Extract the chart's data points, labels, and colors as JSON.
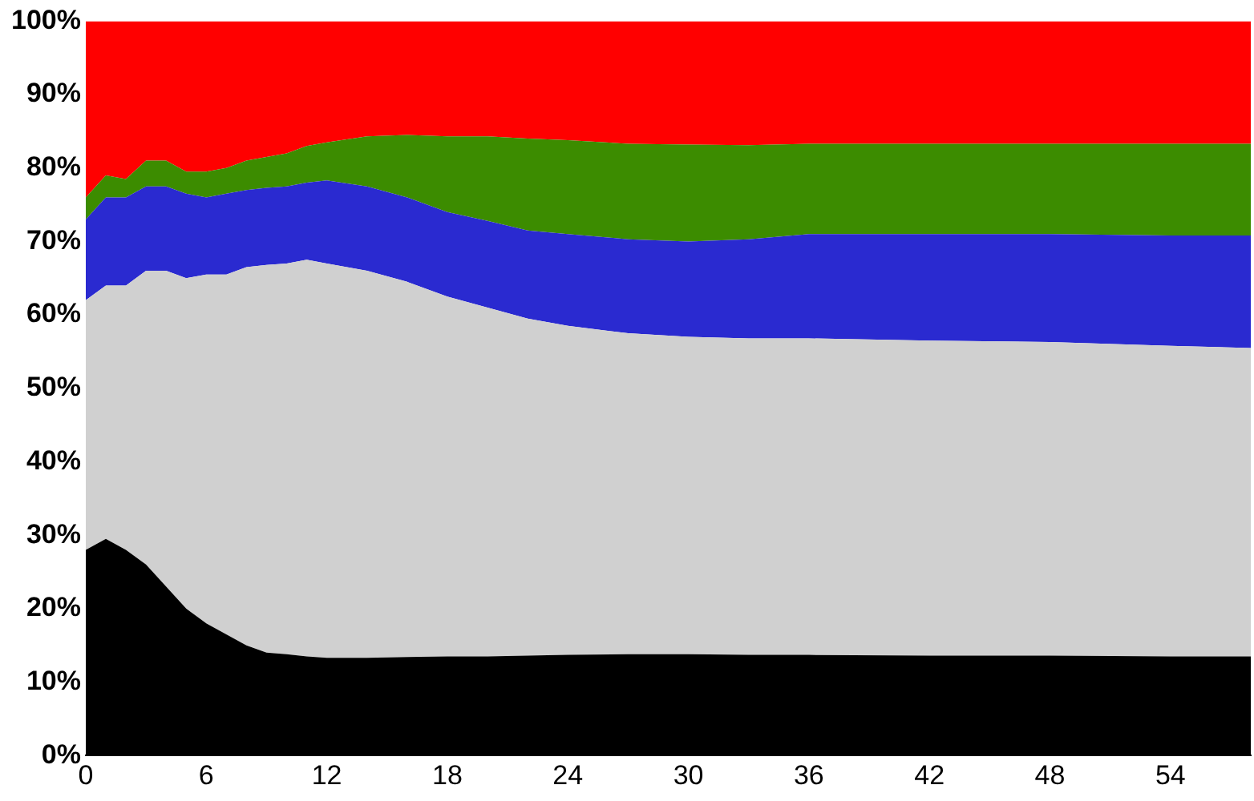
{
  "chart_data": {
    "type": "area",
    "stacked": true,
    "marker": "none",
    "legend": false,
    "grid": false,
    "x": [
      0,
      1,
      2,
      3,
      4,
      5,
      6,
      7,
      8,
      9,
      10,
      11,
      12,
      14,
      16,
      18,
      20,
      22,
      24,
      27,
      30,
      33,
      36,
      42,
      48,
      54,
      58
    ],
    "xlim": [
      0,
      58
    ],
    "xticks": [
      0,
      6,
      12,
      18,
      24,
      30,
      36,
      42,
      48,
      54
    ],
    "ylim": [
      0,
      100
    ],
    "yticks": [
      {
        "value": 0,
        "label": "0%"
      },
      {
        "value": 10,
        "label": "10%"
      },
      {
        "value": 20,
        "label": "20%"
      },
      {
        "value": 30,
        "label": "30%"
      },
      {
        "value": 40,
        "label": "40%"
      },
      {
        "value": 50,
        "label": "50%"
      },
      {
        "value": 60,
        "label": "60%"
      },
      {
        "value": 70,
        "label": "70%"
      },
      {
        "value": 80,
        "label": "80%"
      },
      {
        "value": 90,
        "label": "90%"
      },
      {
        "value": 100,
        "label": "100%"
      }
    ],
    "series": [
      {
        "color": "#000000",
        "values": [
          28,
          29.5,
          28,
          26,
          23,
          20,
          18,
          16.5,
          15,
          14,
          13.8,
          13.5,
          13.3,
          13.3,
          13.4,
          13.5,
          13.5,
          13.6,
          13.7,
          13.8,
          13.8,
          13.7,
          13.7,
          13.6,
          13.6,
          13.5,
          13.5
        ]
      },
      {
        "color": "#d0d0d0",
        "values": [
          34,
          34.5,
          36,
          40,
          43,
          45,
          47.5,
          49,
          51.5,
          52.8,
          53.2,
          54,
          53.7,
          52.7,
          51.1,
          49,
          47.5,
          45.9,
          44.8,
          43.7,
          43.2,
          43.1,
          43.1,
          42.9,
          42.7,
          42.3,
          42
        ]
      },
      {
        "color": "#2a2ad0",
        "values": [
          11,
          12,
          12,
          11.5,
          11.5,
          11.5,
          10.5,
          11,
          10.5,
          10.5,
          10.5,
          10.5,
          11.3,
          11.5,
          11.5,
          11.5,
          11.8,
          12,
          12.5,
          12.8,
          13,
          13.5,
          14.2,
          14.5,
          14.7,
          15,
          15.3
        ]
      },
      {
        "color": "#3c8c00",
        "values": [
          3,
          3,
          2.5,
          3.5,
          3.5,
          3,
          3.5,
          3.5,
          4,
          4.2,
          4.5,
          5,
          5.2,
          6.8,
          8.5,
          10.3,
          11.5,
          12.5,
          12.8,
          13,
          13.2,
          12.8,
          12.3,
          12.3,
          12.3,
          12.5,
          12.5
        ]
      },
      {
        "color": "#ff0000",
        "values": [
          24,
          21,
          21.5,
          19,
          19,
          20.5,
          20.5,
          20,
          19,
          18.5,
          18,
          17,
          16.5,
          15.7,
          15.5,
          15.7,
          15.7,
          16,
          16.2,
          16.7,
          16.8,
          16.9,
          16.7,
          16.7,
          16.7,
          16.7,
          16.7
        ]
      }
    ]
  }
}
